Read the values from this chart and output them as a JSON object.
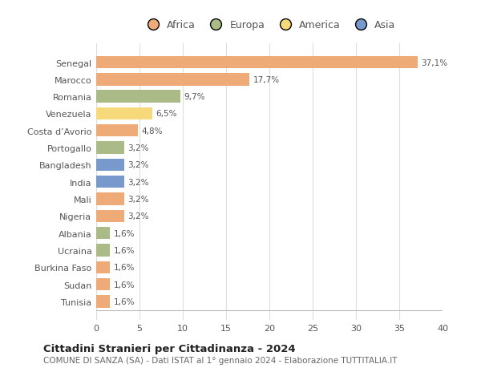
{
  "categories": [
    "Tunisia",
    "Sudan",
    "Burkina Faso",
    "Ucraina",
    "Albania",
    "Nigeria",
    "Mali",
    "India",
    "Bangladesh",
    "Portogallo",
    "Costa d’Avorio",
    "Venezuela",
    "Romania",
    "Marocco",
    "Senegal"
  ],
  "values": [
    1.6,
    1.6,
    1.6,
    1.6,
    1.6,
    3.2,
    3.2,
    3.2,
    3.2,
    3.2,
    4.8,
    6.5,
    9.7,
    17.7,
    37.1
  ],
  "labels": [
    "1,6%",
    "1,6%",
    "1,6%",
    "1,6%",
    "1,6%",
    "3,2%",
    "3,2%",
    "3,2%",
    "3,2%",
    "3,2%",
    "4,8%",
    "6,5%",
    "9,7%",
    "17,7%",
    "37,1%"
  ],
  "colors": [
    "#EEAA77",
    "#EEAA77",
    "#EEAA77",
    "#AABB88",
    "#AABB88",
    "#EEAA77",
    "#EEAA77",
    "#7799CC",
    "#7799CC",
    "#AABB88",
    "#EEAA77",
    "#F5D97A",
    "#AABB88",
    "#EEAA77",
    "#EEAA77"
  ],
  "legend": [
    {
      "label": "Africa",
      "color": "#EEAA77"
    },
    {
      "label": "Europa",
      "color": "#AABB88"
    },
    {
      "label": "America",
      "color": "#F5D97A"
    },
    {
      "label": "Asia",
      "color": "#7799CC"
    }
  ],
  "title": "Cittadini Stranieri per Cittadinanza - 2024",
  "subtitle": "COMUNE DI SANZA (SA) - Dati ISTAT al 1° gennaio 2024 - Elaborazione TUTTITALIA.IT",
  "xlim": [
    0,
    40
  ],
  "xticks": [
    0,
    5,
    10,
    15,
    20,
    25,
    30,
    35,
    40
  ],
  "background_color": "#ffffff",
  "grid_color": "#dddddd",
  "bar_height": 0.72,
  "figsize": [
    6.0,
    4.6
  ],
  "dpi": 100
}
